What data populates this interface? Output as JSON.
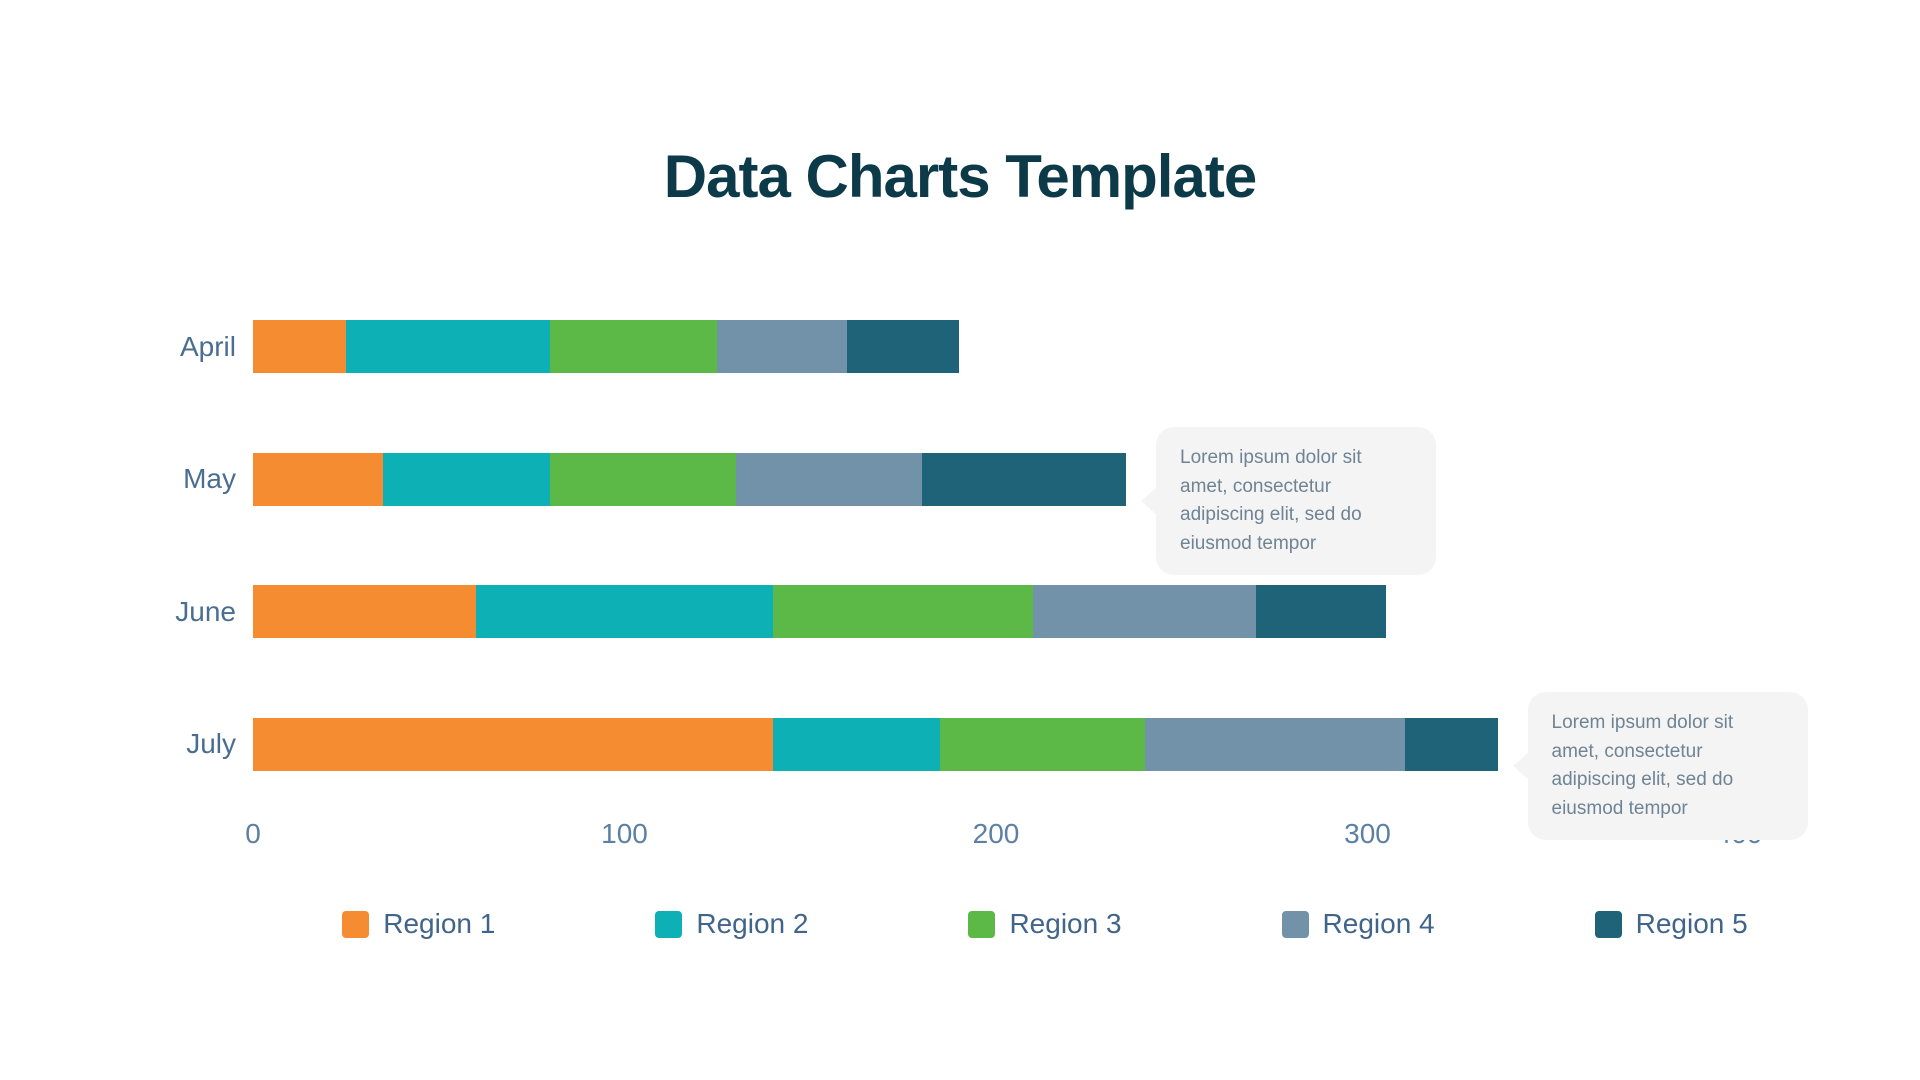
{
  "title": "Data Charts Template",
  "chart_data": {
    "type": "bar",
    "orientation": "horizontal",
    "stacked": true,
    "title": "Data Charts Template",
    "categories": [
      "April",
      "May",
      "June",
      "July"
    ],
    "series": [
      {
        "name": "Region 1",
        "color": "#F68C31",
        "values": [
          25,
          35,
          60,
          140
        ]
      },
      {
        "name": "Region 2",
        "color": "#0DB0B5",
        "values": [
          55,
          45,
          80,
          45
        ]
      },
      {
        "name": "Region 3",
        "color": "#5CB847",
        "values": [
          45,
          50,
          70,
          55
        ]
      },
      {
        "name": "Region 4",
        "color": "#7292A9",
        "values": [
          35,
          50,
          60,
          70
        ]
      },
      {
        "name": "Region 5",
        "color": "#1E6378",
        "values": [
          30,
          55,
          35,
          25
        ]
      }
    ],
    "totals": {
      "April": 190,
      "May": 235,
      "June": 305,
      "July": 335
    },
    "x_ticks": [
      0,
      100,
      200,
      300,
      400
    ],
    "xlim": [
      0,
      400
    ],
    "xlabel": "",
    "ylabel": "",
    "grid": false,
    "legend_position": "bottom"
  },
  "tooltips": [
    {
      "target": "May",
      "text": "Lorem ipsum dolor sit amet, consectetur adipiscing elit, sed do eiusmod tempor"
    },
    {
      "target": "July",
      "text": "Lorem ipsum dolor sit amet, consectetur adipiscing elit, sed do eiusmod tempor"
    }
  ],
  "colors": {
    "title_text": "#0D3A49",
    "category_label": "#4A6E91",
    "tick_label": "#5C80A3",
    "legend_label": "#41658A",
    "tooltip_background": "#F4F4F5",
    "tooltip_text": "#6E8495"
  }
}
